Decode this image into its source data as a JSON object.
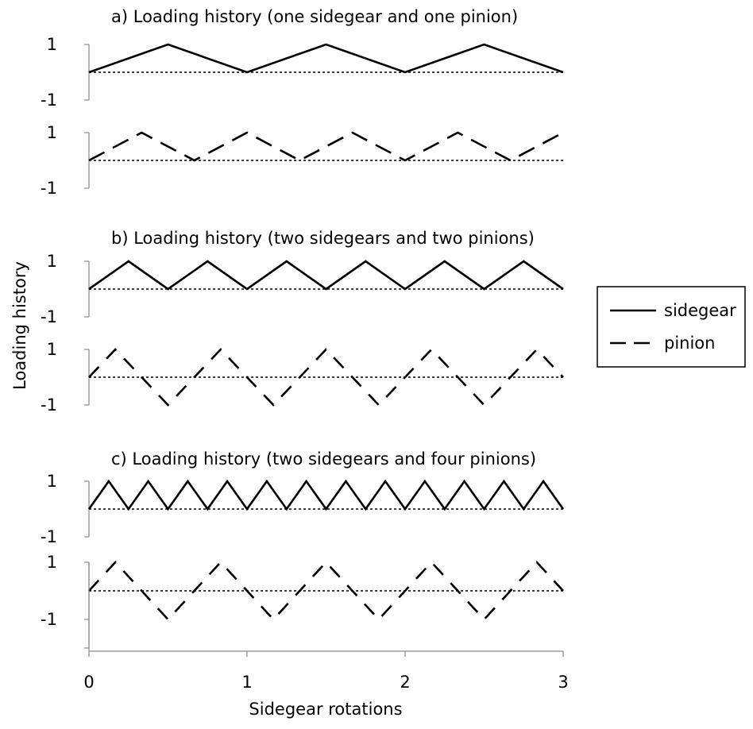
{
  "chart_data": {
    "type": "line",
    "xlabel": "Sidegear rotations",
    "ylabel": "Loading history",
    "x_ticks": [
      "0",
      "1",
      "2",
      "3"
    ],
    "xlim": [
      0,
      3
    ],
    "legend": {
      "placement": "right",
      "entries": [
        {
          "name": "sidegear",
          "style": "solid"
        },
        {
          "name": "pinion",
          "style": "dashed"
        }
      ]
    },
    "panels": [
      {
        "title": "a) Loading history (one sidegear and one pinion)",
        "subplots": [
          {
            "series": "sidegear",
            "style": "solid",
            "ylim": [
              -1,
              1
            ],
            "y_ticks": [
              "1",
              "-1"
            ],
            "x": [
              0,
              0.5,
              1,
              1.5,
              2,
              2.5,
              3
            ],
            "y": [
              0,
              1,
              0,
              1,
              0,
              1,
              0
            ]
          },
          {
            "series": "pinion",
            "style": "dashed",
            "ylim": [
              -1,
              1
            ],
            "y_ticks": [
              "1",
              "-1"
            ],
            "x": [
              0,
              0.333,
              0.667,
              1,
              1.333,
              1.667,
              2,
              2.333,
              2.667,
              3
            ],
            "y": [
              0,
              1,
              0,
              1,
              0,
              1,
              0,
              1,
              0,
              1
            ]
          }
        ]
      },
      {
        "title": "b) Loading history (two sidegears and two pinions)",
        "subplots": [
          {
            "series": "sidegear",
            "style": "solid",
            "ylim": [
              -1,
              1
            ],
            "y_ticks": [
              "1",
              "-1"
            ],
            "x": [
              0,
              0.25,
              0.5,
              0.75,
              1,
              1.25,
              1.5,
              1.75,
              2,
              2.25,
              2.5,
              2.75,
              3
            ],
            "y": [
              0,
              1,
              0,
              1,
              0,
              1,
              0,
              1,
              0,
              1,
              0,
              1,
              0
            ]
          },
          {
            "series": "pinion",
            "style": "dashed",
            "ylim": [
              -1,
              1
            ],
            "y_ticks": [
              "1",
              "-1"
            ],
            "x": [
              0,
              0.167,
              0.5,
              0.833,
              1.167,
              1.5,
              1.833,
              2.167,
              2.5,
              2.833,
              3
            ],
            "y": [
              0,
              1,
              -1,
              1,
              -1,
              1,
              -1,
              1,
              -1,
              1,
              0
            ]
          }
        ]
      },
      {
        "title": "c) Loading history (two sidegears and four pinions)",
        "subplots": [
          {
            "series": "sidegear",
            "style": "solid",
            "ylim": [
              -1,
              1
            ],
            "y_ticks": [
              "1",
              "-1"
            ],
            "x": [
              0,
              0.125,
              0.25,
              0.375,
              0.5,
              0.625,
              0.75,
              0.875,
              1,
              1.125,
              1.25,
              1.375,
              1.5,
              1.625,
              1.75,
              1.875,
              2,
              2.125,
              2.25,
              2.375,
              2.5,
              2.625,
              2.75,
              2.875,
              3
            ],
            "y": [
              0,
              1,
              0,
              1,
              0,
              1,
              0,
              1,
              0,
              1,
              0,
              1,
              0,
              1,
              0,
              1,
              0,
              1,
              0,
              1,
              0,
              1,
              0,
              1,
              0
            ]
          },
          {
            "series": "pinion",
            "style": "dashed",
            "ylim": [
              -2,
              1
            ],
            "y_ticks": [
              "1",
              "-1"
            ],
            "x": [
              0,
              0.167,
              0.5,
              0.833,
              1.167,
              1.5,
              1.833,
              2.167,
              2.5,
              2.833,
              3
            ],
            "y": [
              0,
              1,
              -1,
              1,
              -1,
              1,
              -1,
              1,
              -1,
              1,
              0
            ]
          }
        ]
      }
    ]
  }
}
